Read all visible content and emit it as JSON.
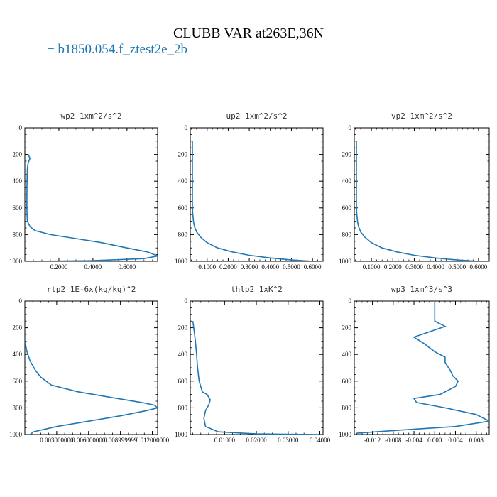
{
  "title": "CLUBB VAR at263E,36N",
  "legend": {
    "label": "− b1850.054.f_ztest2e_2b",
    "color": "#1f77b4"
  },
  "chart_data": [
    {
      "type": "line",
      "title": "wp2  1xm^2/s^2",
      "xlim": [
        0,
        0.78
      ],
      "ylim": [
        0,
        1000
      ],
      "y_inverted": true,
      "xticks": [
        0.2,
        0.4,
        0.6
      ],
      "xtick_labels": [
        "0.2000",
        "0.4000",
        "0.6000"
      ],
      "yticks": [
        0,
        200,
        400,
        600,
        800,
        1000
      ],
      "ytick_labels": [
        "0",
        "200",
        "400",
        "600",
        "800",
        "1000"
      ],
      "x": [
        0.02,
        0.03,
        0.02,
        0.015,
        0.013,
        0.012,
        0.012,
        0.013,
        0.015,
        0.03,
        0.06,
        0.15,
        0.3,
        0.45,
        0.6,
        0.72,
        0.78,
        0.7,
        0.4,
        0.04
      ],
      "y": [
        200,
        230,
        260,
        300,
        400,
        500,
        600,
        650,
        700,
        740,
        770,
        800,
        830,
        860,
        900,
        930,
        960,
        980,
        995,
        1000
      ]
    },
    {
      "type": "line",
      "title": "up2   1xm^2/s^2",
      "xlim": [
        0.02,
        0.65
      ],
      "ylim": [
        0,
        1000
      ],
      "y_inverted": true,
      "xticks": [
        0.1,
        0.2,
        0.3,
        0.4,
        0.5,
        0.6
      ],
      "xtick_labels": [
        "0.1000",
        "0.2000",
        "0.3000",
        "0.4000",
        "0.5000",
        "0.6000"
      ],
      "yticks": [
        0,
        200,
        400,
        600,
        800,
        1000
      ],
      "ytick_labels": [
        "0",
        "200",
        "400",
        "600",
        "800",
        "1000"
      ],
      "x": [
        0.03,
        0.03,
        0.03,
        0.03,
        0.032,
        0.035,
        0.04,
        0.05,
        0.07,
        0.1,
        0.15,
        0.22,
        0.3,
        0.4,
        0.5,
        0.6
      ],
      "y": [
        100,
        300,
        500,
        600,
        650,
        700,
        740,
        780,
        820,
        860,
        900,
        930,
        955,
        975,
        990,
        1000
      ]
    },
    {
      "type": "line",
      "title": "vp2   1xm^2/s^2",
      "xlim": [
        0.02,
        0.65
      ],
      "ylim": [
        0,
        1000
      ],
      "y_inverted": true,
      "xticks": [
        0.1,
        0.2,
        0.3,
        0.4,
        0.5,
        0.6
      ],
      "xtick_labels": [
        "0.1000",
        "0.2000",
        "0.3000",
        "0.4000",
        "0.5000",
        "0.6000"
      ],
      "yticks": [
        0,
        200,
        400,
        600,
        800,
        1000
      ],
      "ytick_labels": [
        "0",
        "200",
        "400",
        "600",
        "800",
        "1000"
      ],
      "x": [
        0.03,
        0.03,
        0.03,
        0.03,
        0.032,
        0.035,
        0.04,
        0.05,
        0.07,
        0.1,
        0.15,
        0.22,
        0.3,
        0.4,
        0.5,
        0.6
      ],
      "y": [
        100,
        300,
        500,
        600,
        650,
        700,
        740,
        780,
        820,
        860,
        900,
        930,
        955,
        975,
        990,
        1000
      ]
    },
    {
      "type": "line",
      "title": "rtp2   1E-6x(kg/kg)^2",
      "xlim": [
        0.0,
        0.0125
      ],
      "ylim": [
        0,
        1000
      ],
      "y_inverted": true,
      "xticks": [
        0.003,
        0.006,
        0.009,
        0.012
      ],
      "xtick_labels": [
        "0.003000000",
        "0.006000000",
        "0.008999999",
        "0.012000000"
      ],
      "yticks": [
        0,
        200,
        400,
        600,
        800,
        1000
      ],
      "ytick_labels": [
        "0",
        "200",
        "400",
        "600",
        "800",
        "1000"
      ],
      "x": [
        0.0,
        0.0002,
        0.0005,
        0.001,
        0.0015,
        0.0025,
        0.005,
        0.008,
        0.011,
        0.0122,
        0.0125,
        0.0115,
        0.009,
        0.006,
        0.003,
        0.0008,
        0.0005
      ],
      "y": [
        300,
        380,
        450,
        520,
        570,
        630,
        680,
        720,
        760,
        780,
        800,
        820,
        860,
        900,
        940,
        980,
        1000
      ]
    },
    {
      "type": "line",
      "title": "thlp2   1xK^2",
      "xlim": [
        -0.0008,
        0.041
      ],
      "ylim": [
        0,
        1000
      ],
      "y_inverted": true,
      "xticks": [
        0.01,
        0.02,
        0.03,
        0.04
      ],
      "xtick_labels": [
        "0.01000",
        "0.02000",
        "0.03000",
        "0.04000"
      ],
      "yticks": [
        0,
        200,
        400,
        600,
        800,
        1000
      ],
      "ytick_labels": [
        "0",
        "200",
        "400",
        "600",
        "800",
        "1000"
      ],
      "x": [
        0.0,
        0.0003,
        0.0008,
        0.0012,
        0.0015,
        0.002,
        0.003,
        0.0045,
        0.0055,
        0.005,
        0.004,
        0.0035,
        0.004,
        0.008,
        0.02,
        0.04
      ],
      "y": [
        150,
        200,
        300,
        400,
        500,
        600,
        680,
        700,
        740,
        780,
        820,
        880,
        940,
        980,
        995,
        1000
      ]
    },
    {
      "type": "line",
      "title": "wp3   1xm^3/s^3",
      "xlim": [
        -0.0155,
        0.0105
      ],
      "ylim": [
        0,
        1000
      ],
      "y_inverted": true,
      "xticks": [
        -0.012,
        -0.008,
        -0.004,
        0.0,
        0.004,
        0.008
      ],
      "xtick_labels": [
        "-0.012",
        "-0.008",
        "-0.004",
        "0.000",
        "0.004",
        "0.008"
      ],
      "yticks": [
        0,
        200,
        400,
        600,
        800,
        1000
      ],
      "ytick_labels": [
        "0",
        "200",
        "400",
        "600",
        "800",
        "1000"
      ],
      "x": [
        0.0,
        0.0,
        0.002,
        -0.001,
        -0.004,
        -0.002,
        0.0,
        0.002,
        0.002,
        0.003,
        0.0035,
        0.0045,
        0.004,
        0.001,
        -0.004,
        -0.0035,
        0.002,
        0.008,
        0.0105,
        0.004,
        -0.008,
        -0.015
      ],
      "y": [
        0,
        150,
        190,
        230,
        270,
        320,
        380,
        420,
        460,
        520,
        560,
        600,
        640,
        700,
        730,
        760,
        800,
        850,
        900,
        940,
        970,
        990
      ]
    }
  ]
}
